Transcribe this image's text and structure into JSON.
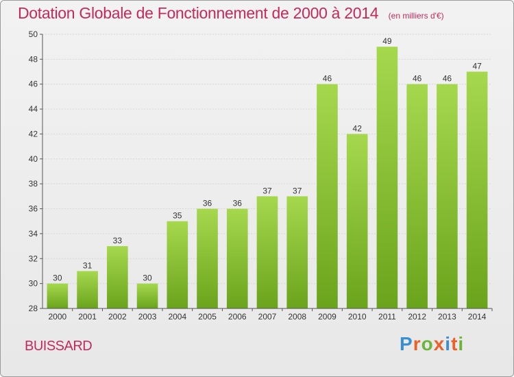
{
  "header": {
    "title": "Dotation Globale de Fonctionnement de 2000 à 2014",
    "subtitle": "(en milliers d'€)"
  },
  "footer": {
    "commune": "BUISSARD",
    "brand": "Proxiti",
    "brand_colors": [
      "#3a8fd1",
      "#e8622a",
      "#6fb43a",
      "#e8622a",
      "#3a8fd1",
      "#e8622a",
      "#6fb43a"
    ]
  },
  "colors": {
    "bar_light": "#a6d84e",
    "bar_dark": "#6aa41c",
    "title": "#c4295b"
  },
  "chart_data": {
    "type": "bar",
    "categories": [
      "2000",
      "2001",
      "2002",
      "2003",
      "2004",
      "2005",
      "2006",
      "2007",
      "2008",
      "2009",
      "2010",
      "2011",
      "2012",
      "2013",
      "2014"
    ],
    "values": [
      30,
      31,
      33,
      30,
      35,
      36,
      36,
      37,
      37,
      46,
      42,
      49,
      46,
      46,
      47
    ],
    "ylim": [
      28,
      50
    ],
    "yticks": [
      28,
      30,
      32,
      34,
      36,
      38,
      40,
      42,
      44,
      46,
      48,
      50
    ],
    "grid": true
  }
}
